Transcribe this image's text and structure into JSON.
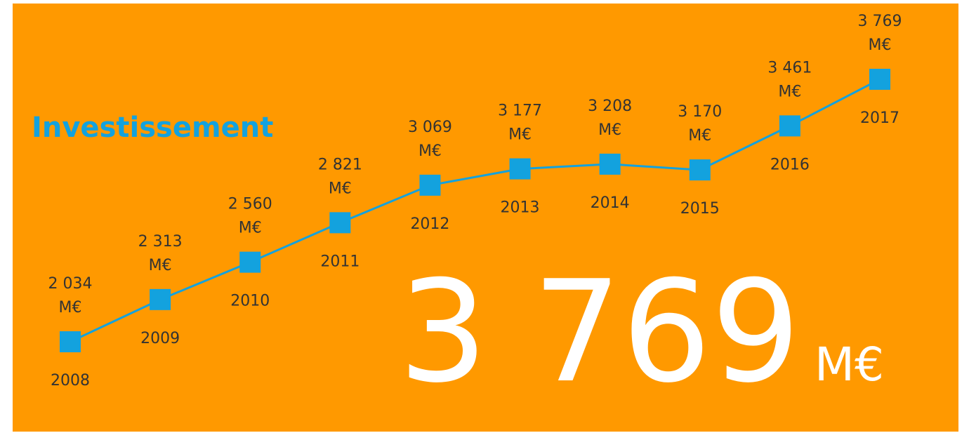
{
  "chart_data": {
    "type": "line",
    "title": "Investissement",
    "categories": [
      "2008",
      "2009",
      "2010",
      "2011",
      "2012",
      "2013",
      "2014",
      "2015",
      "2016",
      "2017"
    ],
    "values": [
      2034,
      2313,
      2560,
      2821,
      3069,
      3177,
      3208,
      3170,
      3461,
      3769
    ],
    "value_labels": [
      "2 034",
      "2 313",
      "2 560",
      "2 821",
      "3 069",
      "3 177",
      "3 208",
      "3 170",
      "3 461",
      "3 769"
    ],
    "unit": "M€",
    "color": "#13a2de",
    "highlight": {
      "label": "3 769",
      "unit": "M€"
    }
  }
}
